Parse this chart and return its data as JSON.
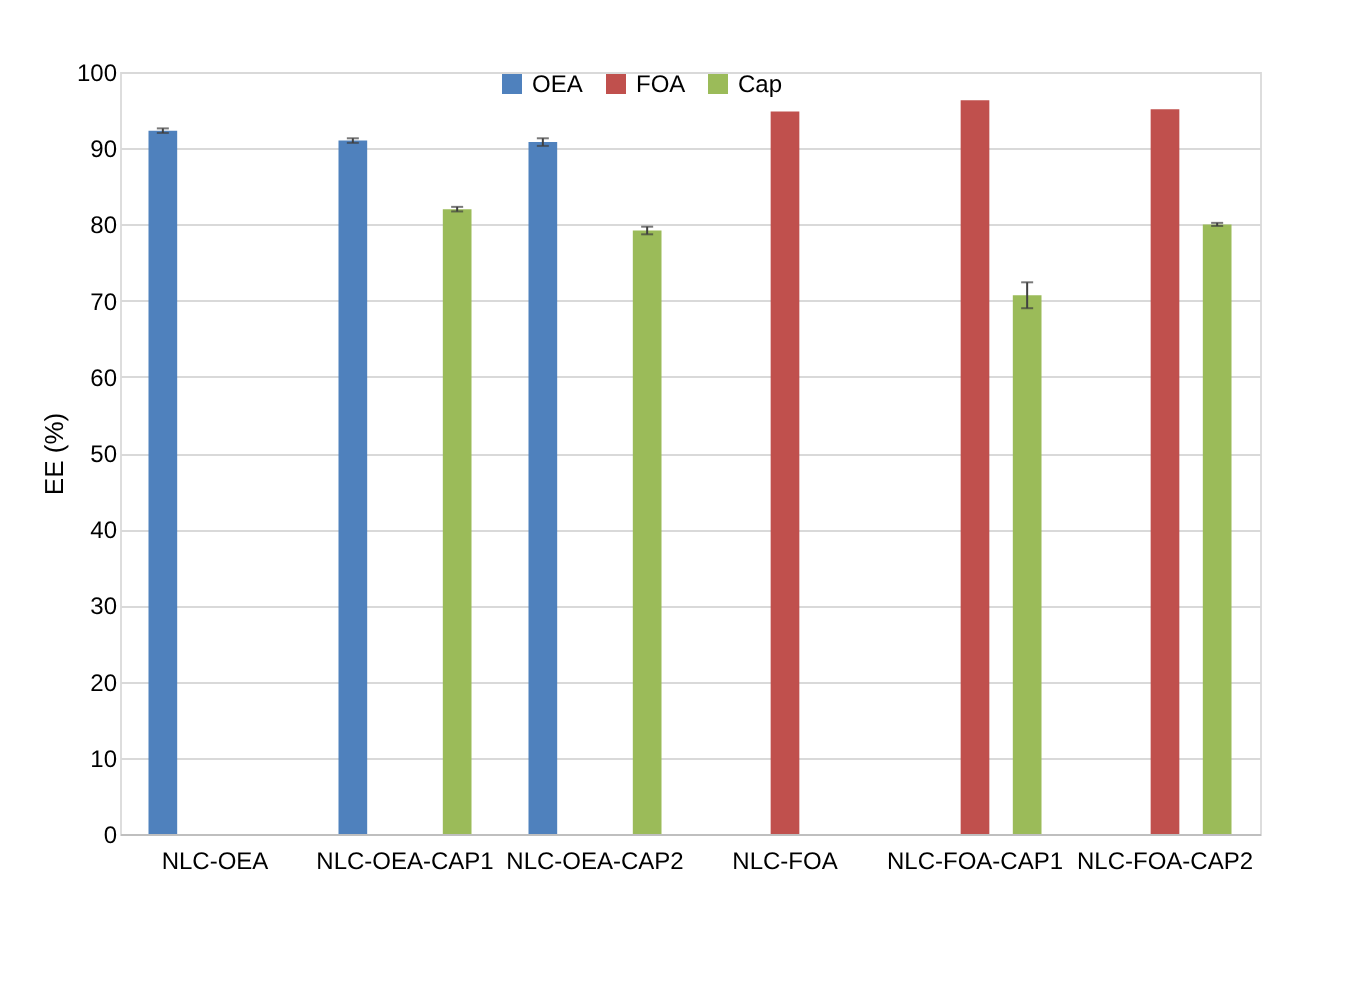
{
  "chart_data": {
    "type": "bar",
    "ylabel": "EE (%)",
    "categories": [
      "NLC-OEA",
      "NLC-OEA-CAP1",
      "NLC-OEA-CAP2",
      "NLC-FOA",
      "NLC-FOA-CAP1",
      "NLC-FOA-CAP2"
    ],
    "series": [
      {
        "name": "OEA",
        "color": "#4f81bd",
        "values": [
          92.3,
          91.0,
          90.8,
          null,
          null,
          null
        ],
        "errors": [
          0.3,
          0.3,
          0.5,
          null,
          null,
          null
        ]
      },
      {
        "name": "FOA",
        "color": "#c0504d",
        "values": [
          null,
          null,
          null,
          94.8,
          96.3,
          95.1
        ],
        "errors": [
          null,
          null,
          null,
          null,
          null,
          null
        ]
      },
      {
        "name": "Cap",
        "color": "#9bbb59",
        "values": [
          null,
          82.0,
          79.2,
          null,
          70.7,
          80.0
        ],
        "errors": [
          null,
          0.3,
          0.5,
          null,
          1.7,
          0.2
        ]
      }
    ],
    "ylim": [
      0,
      100
    ],
    "yticks": [
      0,
      10,
      20,
      30,
      40,
      50,
      60,
      70,
      80,
      90,
      100
    ],
    "grid": "y",
    "legend": "top"
  }
}
